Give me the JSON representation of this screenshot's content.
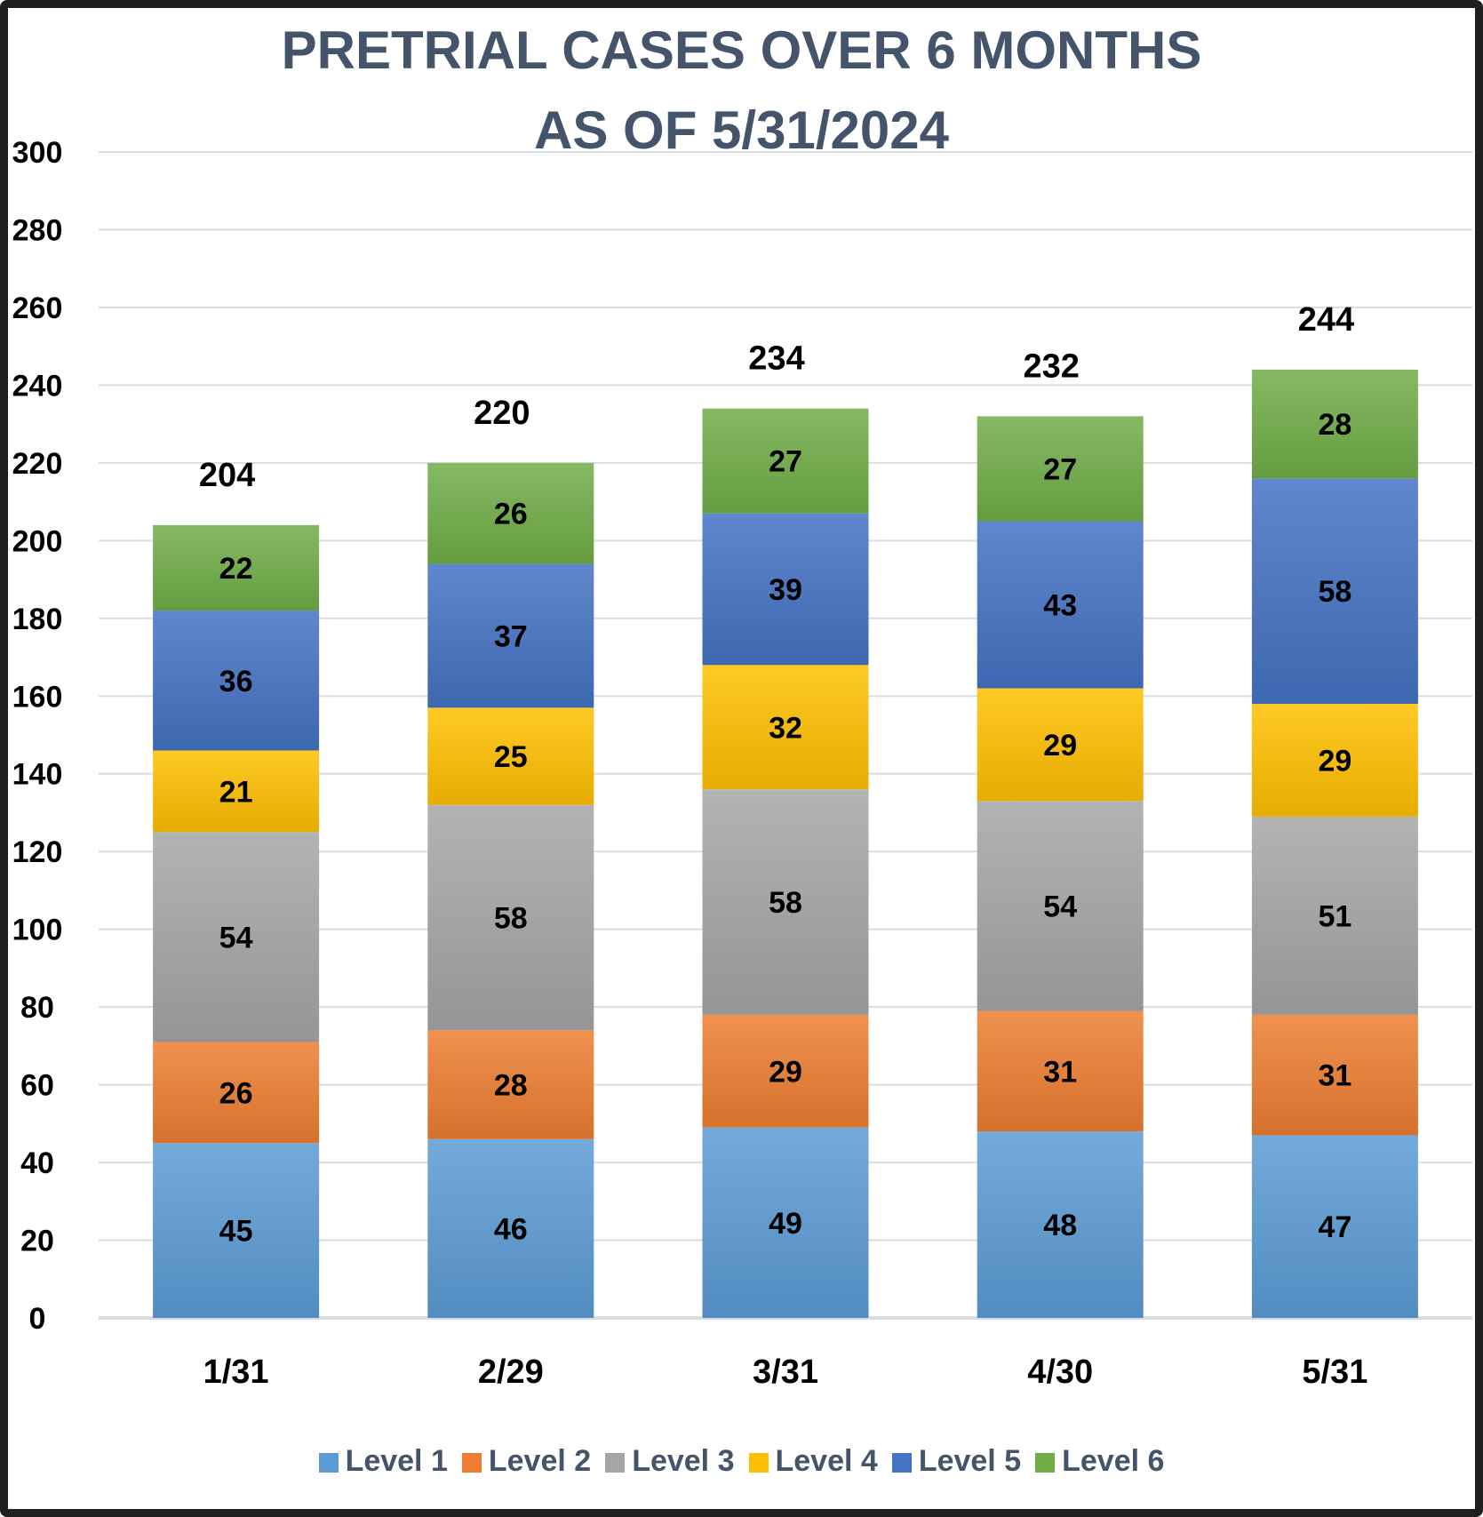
{
  "chart_data": {
    "type": "bar",
    "stacked": true,
    "title": "PRETRIAL CASES OVER 6 MONTHS",
    "subtitle": "AS OF 5/31/2024",
    "xlabel": "",
    "ylabel": "",
    "ylim": [
      0,
      300
    ],
    "yticks": [
      0,
      20,
      40,
      60,
      80,
      100,
      120,
      140,
      160,
      180,
      200,
      220,
      240,
      260,
      280,
      300
    ],
    "grid": true,
    "legend_position": "bottom",
    "categories": [
      "1/31",
      "2/29",
      "3/31",
      "4/30",
      "5/31"
    ],
    "series": [
      {
        "name": "Level 1",
        "color": "#5b9bd5",
        "values": [
          45,
          46,
          49,
          48,
          47
        ]
      },
      {
        "name": "Level 2",
        "color": "#ed7d31",
        "values": [
          26,
          28,
          29,
          31,
          31
        ]
      },
      {
        "name": "Level 3",
        "color": "#a5a5a5",
        "values": [
          54,
          58,
          58,
          54,
          51
        ]
      },
      {
        "name": "Level 4",
        "color": "#ffc000",
        "values": [
          21,
          25,
          32,
          29,
          29
        ]
      },
      {
        "name": "Level 5",
        "color": "#4472c4",
        "values": [
          36,
          37,
          39,
          43,
          58
        ]
      },
      {
        "name": "Level 6",
        "color": "#70ad47",
        "values": [
          22,
          26,
          27,
          27,
          28
        ]
      }
    ],
    "totals": [
      204,
      220,
      234,
      232,
      244
    ]
  }
}
